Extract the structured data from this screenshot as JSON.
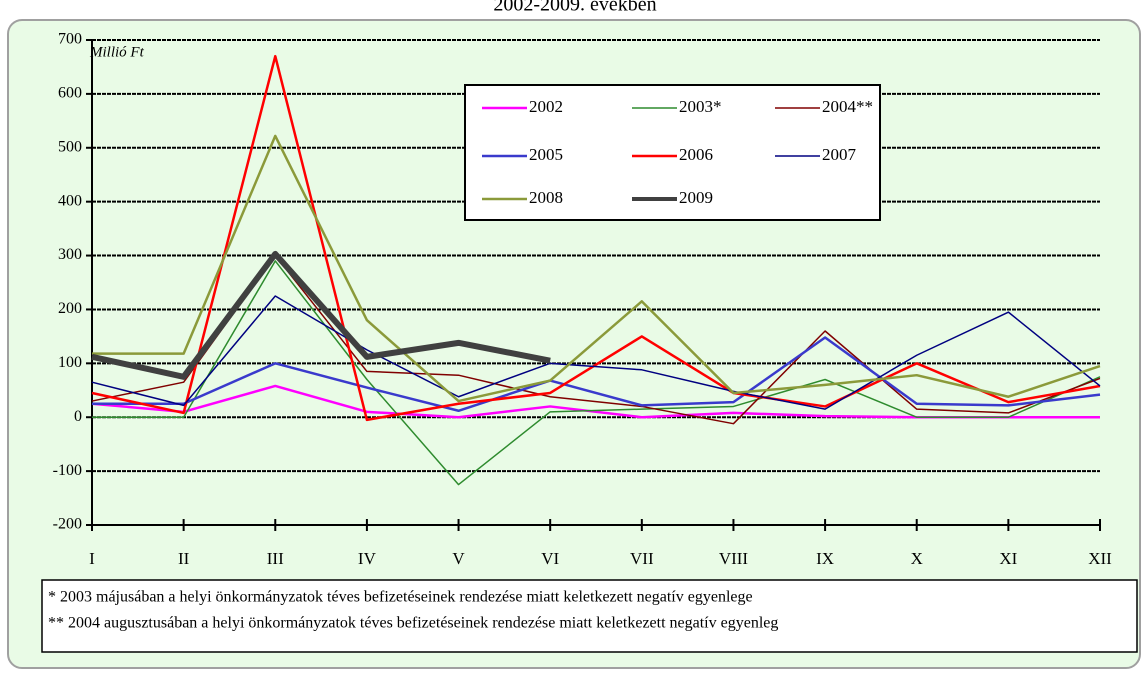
{
  "chart_data": {
    "type": "line",
    "title": "2002-2009. években",
    "y_label": "Millió Ft",
    "categories": [
      "I",
      "II",
      "III",
      "IV",
      "V",
      "VI",
      "VII",
      "VIII",
      "IX",
      "X",
      "XI",
      "XII"
    ],
    "ylim": [
      -200,
      700
    ],
    "yticks": [
      -200,
      -100,
      0,
      100,
      200,
      300,
      400,
      500,
      600,
      700
    ],
    "grid": true,
    "series": [
      {
        "name": "2002",
        "color": "#ff00ff",
        "width": 2.5,
        "values": [
          25,
          10,
          58,
          10,
          0,
          20,
          0,
          8,
          2,
          0,
          0,
          0
        ]
      },
      {
        "name": "2003*",
        "color": "#2e8b2e",
        "width": 1.5,
        "values": [
          0,
          0,
          290,
          70,
          -125,
          10,
          15,
          20,
          70,
          0,
          0,
          75
        ]
      },
      {
        "name": "2004**",
        "color": "#800000",
        "width": 1.5,
        "values": [
          30,
          65,
          300,
          85,
          78,
          38,
          20,
          -12,
          160,
          15,
          8,
          72
        ]
      },
      {
        "name": "2005",
        "color": "#3a3acc",
        "width": 2.5,
        "values": [
          25,
          25,
          100,
          55,
          12,
          68,
          22,
          28,
          148,
          25,
          22,
          42
        ]
      },
      {
        "name": "2006",
        "color": "#ff0000",
        "width": 2.5,
        "values": [
          45,
          8,
          670,
          -5,
          25,
          45,
          150,
          45,
          20,
          100,
          28,
          58
        ]
      },
      {
        "name": "2007",
        "color": "#000080",
        "width": 1.5,
        "values": [
          65,
          22,
          225,
          125,
          38,
          100,
          88,
          48,
          15,
          115,
          195,
          58
        ]
      },
      {
        "name": "2008",
        "color": "#8b9a3a",
        "width": 2.5,
        "values": [
          118,
          118,
          522,
          180,
          30,
          68,
          215,
          45,
          60,
          78,
          38,
          95
        ]
      },
      {
        "name": "2009",
        "color": "#404040",
        "width": 6,
        "values": [
          112,
          75,
          303,
          112,
          138,
          105,
          null,
          null,
          null,
          null,
          null,
          null
        ]
      }
    ],
    "footnotes": [
      "*  2003 májusában a helyi önkormányzatok téves befizetéseinek  rendezése miatt keletkezett  negatív egyenlege",
      "** 2004 augusztusában a helyi önkormányzatok téves befizetéseinek  rendezése miatt keletkezett  negatív egyenleg"
    ]
  }
}
